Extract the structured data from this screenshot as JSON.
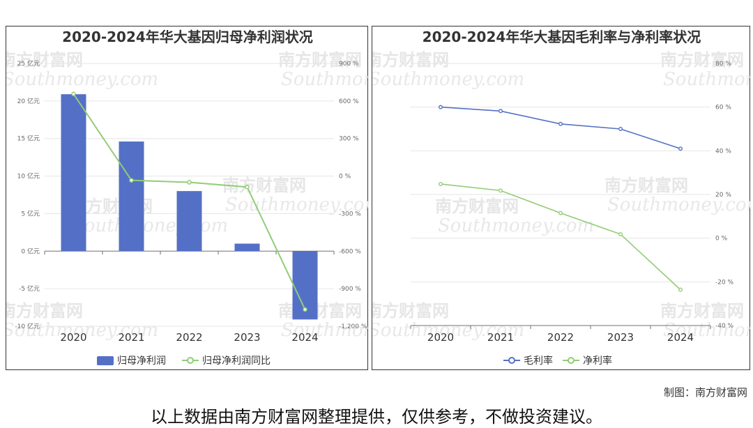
{
  "footer": {
    "credit": "制图：南方财富网",
    "disclaimer": "以上数据由南方财富网整理提供，仅供参考，不做投资建议。"
  },
  "watermark": {
    "cn": "南方财富网",
    "en": "Southmoney.com"
  },
  "chart_data": [
    {
      "type": "bar",
      "title": "2020-2024年华大基因归母净利润状况",
      "categories": [
        "2020",
        "2021",
        "2022",
        "2023",
        "2024"
      ],
      "left_axis": {
        "ticks": [
          "25 亿元",
          "20 亿元",
          "15 亿元",
          "10 亿元",
          "5 亿元",
          "0 亿元",
          "-5 亿元",
          "-10 亿元"
        ],
        "ylim": [
          -10,
          25
        ]
      },
      "right_axis": {
        "ticks": [
          "900 %",
          "600 %",
          "300 %",
          "0 %",
          "-300 %",
          "-600 %",
          "-900 %",
          "-1,200 %"
        ],
        "ylim": [
          -1200,
          900
        ]
      },
      "series": [
        {
          "name": "归母净利润",
          "kind": "bar",
          "axis": "left",
          "color": "#5470c6",
          "values": [
            20.9,
            14.6,
            8.0,
            1.0,
            -9.1
          ]
        },
        {
          "name": "归母净利润同比",
          "kind": "line",
          "axis": "right",
          "color": "#91cc75",
          "values": [
            656,
            -34,
            -50,
            -88,
            -1066
          ]
        }
      ],
      "legend_position": "bottom-center",
      "grid": true
    },
    {
      "type": "line",
      "title": "2020-2024年华大基因毛利率与净利率状况",
      "categories": [
        "2020",
        "2021",
        "2022",
        "2023",
        "2024"
      ],
      "right_axis": {
        "ticks": [
          "80 %",
          "60 %",
          "40 %",
          "20 %",
          "0 %",
          "-20 %",
          "-40 %"
        ],
        "ylim": [
          -40,
          80
        ]
      },
      "series": [
        {
          "name": "毛利率",
          "color": "#5470c6",
          "values": [
            60.0,
            58.2,
            52.3,
            50.0,
            41.0
          ]
        },
        {
          "name": "净利率",
          "color": "#91cc75",
          "values": [
            24.8,
            21.8,
            11.5,
            1.8,
            -23.6
          ]
        }
      ],
      "legend_position": "bottom-center",
      "grid": true
    }
  ]
}
